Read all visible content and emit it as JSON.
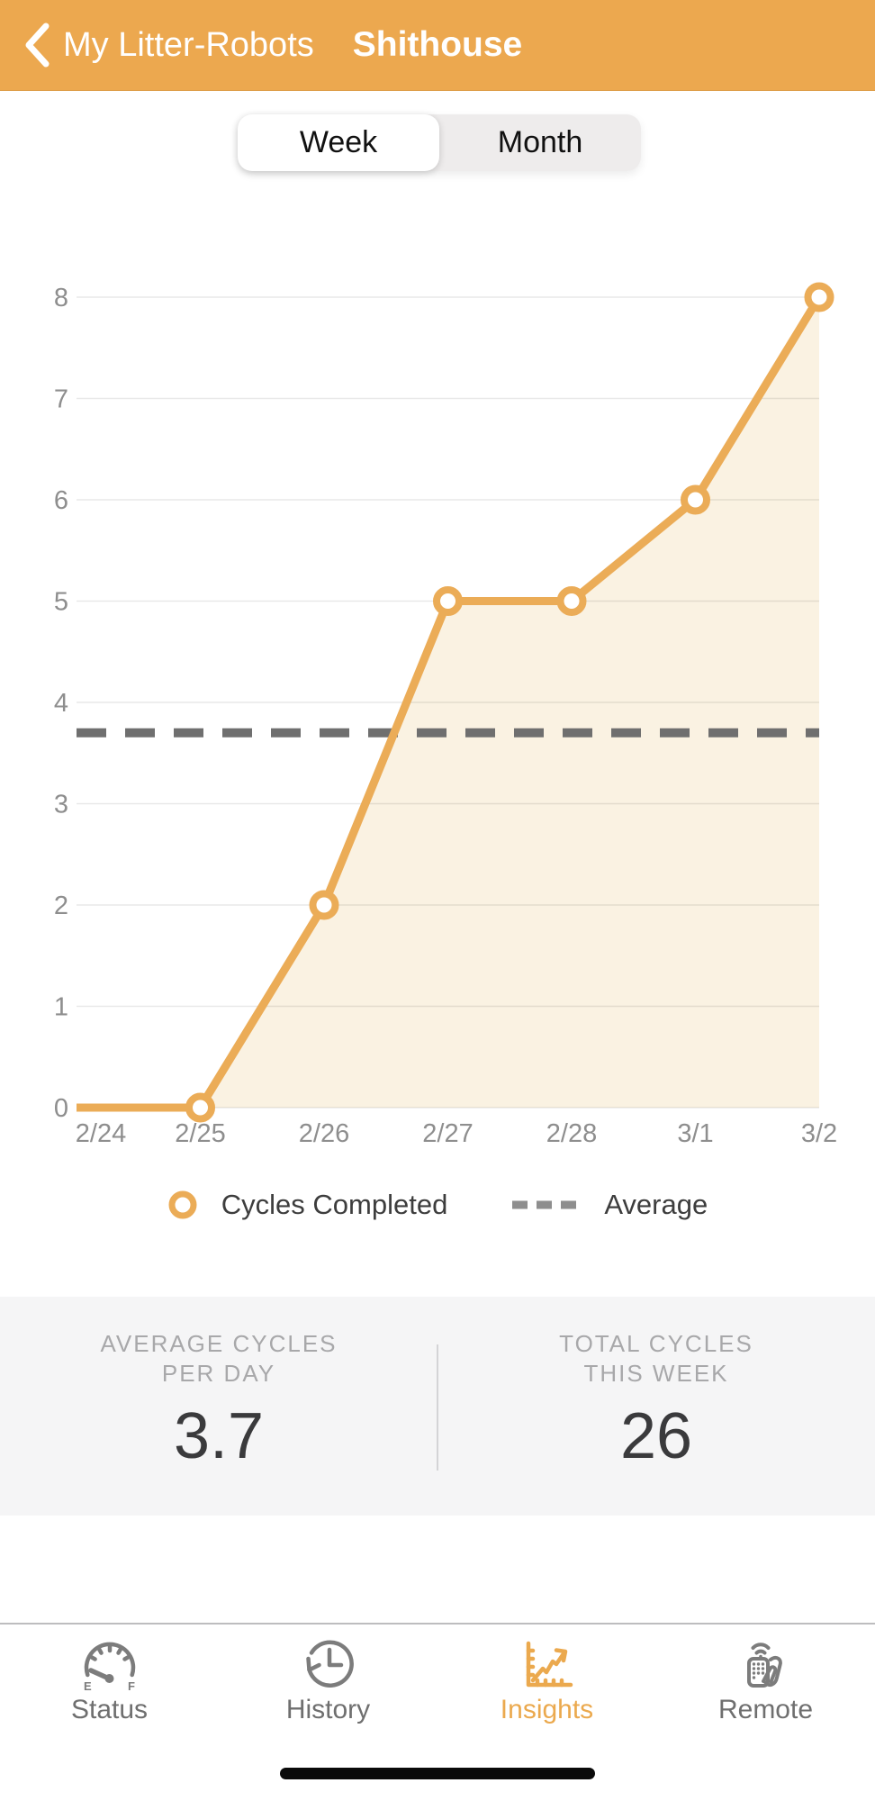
{
  "header": {
    "back_label": "My Litter-Robots",
    "title": "Shithouse"
  },
  "period_toggle": {
    "options": [
      "Week",
      "Month"
    ],
    "selected": "Week"
  },
  "chart_data": {
    "type": "line",
    "categories": [
      "2/24",
      "2/25",
      "2/26",
      "2/27",
      "2/28",
      "3/1",
      "3/2"
    ],
    "series": [
      {
        "name": "Cycles Completed",
        "values": [
          0,
          0,
          2,
          5,
          5,
          6,
          8
        ]
      }
    ],
    "average_line": {
      "label": "Average",
      "value": 3.7
    },
    "ylim": [
      0,
      8
    ],
    "yticks": [
      0,
      1,
      2,
      3,
      4,
      5,
      6,
      7,
      8
    ],
    "grid": true,
    "legend_position": "bottom",
    "marker_point_indices": [
      1,
      2,
      3,
      4,
      5,
      6
    ],
    "colors": {
      "line": "#EBAC57",
      "area_fill": "#FAF2E2",
      "average": "#6F6F6F",
      "grid": "rgba(0,0,0,0.09)",
      "axis_text": "#8E8E8E"
    }
  },
  "legend": {
    "series_label": "Cycles Completed",
    "average_label": "Average"
  },
  "stats": {
    "left": {
      "label_line1": "AVERAGE CYCLES",
      "label_line2": "PER DAY",
      "value": "3.7"
    },
    "right": {
      "label_line1": "TOTAL CYCLES",
      "label_line2": "THIS WEEK",
      "value": "26"
    }
  },
  "tab_bar": {
    "gauge_icon_labels": {
      "empty": "E",
      "full": "F"
    },
    "tabs": [
      {
        "label": "Status",
        "icon": "fuel-gauge-icon",
        "active": false
      },
      {
        "label": "History",
        "icon": "history-clock-icon",
        "active": false
      },
      {
        "label": "Insights",
        "icon": "insights-chart-icon",
        "active": true
      },
      {
        "label": "Remote",
        "icon": "remote-control-icon",
        "active": false
      }
    ]
  },
  "colors": {
    "header_bg": "#ECA84F",
    "accent": "#EBA94E",
    "tab_inactive": "#6F6F6F"
  }
}
